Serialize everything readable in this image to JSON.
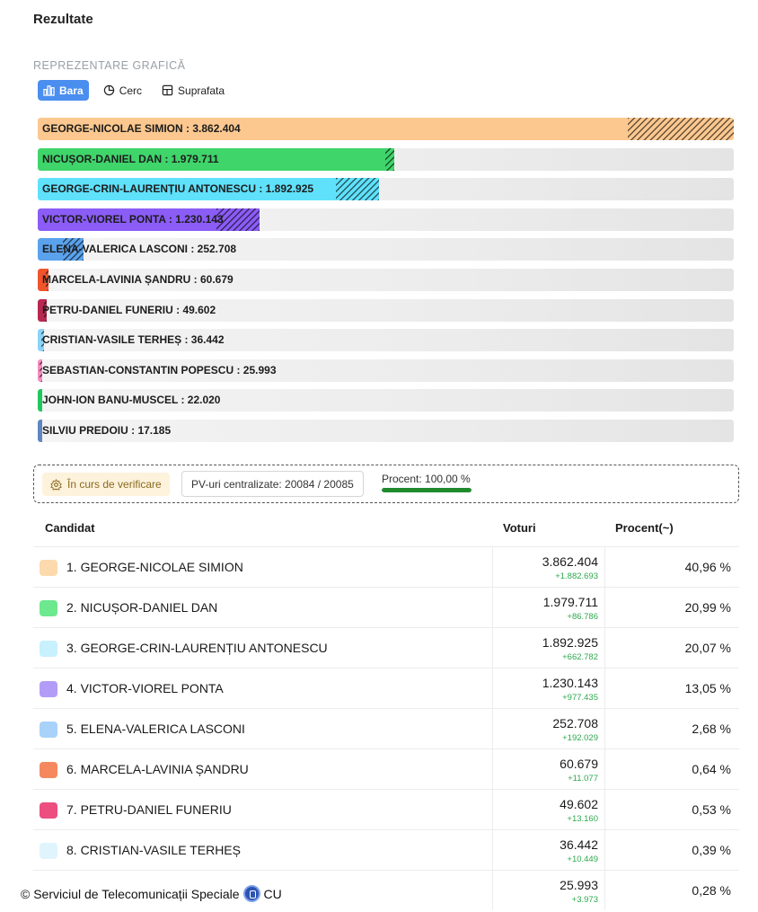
{
  "page": {
    "title": "Rezultate",
    "section_label": "REPREZENTARE GRAFICĂ"
  },
  "tabs": [
    {
      "label": "Bara",
      "icon": "bar-chart-icon",
      "active": true
    },
    {
      "label": "Cerc",
      "icon": "pie-chart-icon",
      "active": false
    },
    {
      "label": "Suprafata",
      "icon": "treemap-icon",
      "active": false
    }
  ],
  "chart_data": {
    "type": "bar",
    "orientation": "horizontal",
    "categories": [
      "GEORGE-NICOLAE SIMION",
      "NICUȘOR-DANIEL DAN",
      "GEORGE-CRIN-LAURENȚIU ANTONESCU",
      "VICTOR-VIOREL PONTA",
      "ELENA-VALERICA LASCONI",
      "MARCELA-LAVINIA ȘANDRU",
      "PETRU-DANIEL FUNERIU",
      "CRISTIAN-VASILE TERHEȘ",
      "SEBASTIAN-CONSTANTIN POPESCU",
      "JOHN-ION BANU-MUSCEL",
      "SILVIU PREDOIU"
    ],
    "values": [
      3862404,
      1979711,
      1892925,
      1230143,
      252708,
      60679,
      49602,
      36442,
      25993,
      22020,
      17185
    ],
    "value_labels": [
      "3.862.404",
      "1.979.711",
      "1.892.925",
      "1.230.143",
      "252.708",
      "60.679",
      "49.602",
      "36.442",
      "25.993",
      "22.020",
      "17.185"
    ],
    "increments": [
      1882693,
      86786,
      662782,
      977435,
      192029,
      11077,
      13160,
      10449,
      3973,
      null,
      null
    ],
    "colors": [
      "#fcc88f",
      "#3fd56b",
      "#5fe0fb",
      "#8b5cf6",
      "#5aa2ec",
      "#f0542c",
      "#b8274f",
      "#8bd3f7",
      "#f58bc0",
      "#22c85e",
      "#5f86c0"
    ],
    "xlim": [
      0,
      3862404
    ]
  },
  "status": {
    "verify_label": "În curs de verificare",
    "pv_label": "PV-uri centralizate: 20084 / 20085",
    "percent_label": "Procent: 100,00 %",
    "percent_value": 1.0
  },
  "table": {
    "headers": {
      "candidate": "Candidat",
      "votes": "Voturi",
      "percent": "Procent(~)"
    },
    "rows": [
      {
        "name": "1. GEORGE-NICOLAE SIMION",
        "votes": "3.862.404",
        "delta": "+1.882.693",
        "percent": "40,96 %",
        "color": "#fdd9ae"
      },
      {
        "name": "2. NICUȘOR-DANIEL DAN",
        "votes": "1.979.711",
        "delta": "+86.786",
        "percent": "20,99 %",
        "color": "#6ee88e"
      },
      {
        "name": "3. GEORGE-CRIN-LAURENȚIU ANTONESCU",
        "votes": "1.892.925",
        "delta": "+662.782",
        "percent": "20,07 %",
        "color": "#c7f2fd"
      },
      {
        "name": "4. VICTOR-VIOREL PONTA",
        "votes": "1.230.143",
        "delta": "+977.435",
        "percent": "13,05 %",
        "color": "#b39cf7"
      },
      {
        "name": "5. ELENA-VALERICA LASCONI",
        "votes": "252.708",
        "delta": "+192.029",
        "percent": "2,68 %",
        "color": "#a9d2fb"
      },
      {
        "name": "6. MARCELA-LAVINIA ȘANDRU",
        "votes": "60.679",
        "delta": "+11.077",
        "percent": "0,64 %",
        "color": "#f5885e"
      },
      {
        "name": "7. PETRU-DANIEL FUNERIU",
        "votes": "49.602",
        "delta": "+13.160",
        "percent": "0,53 %",
        "color": "#ec4f7f"
      },
      {
        "name": "8. CRISTIAN-VASILE TERHEȘ",
        "votes": "36.442",
        "delta": "+10.449",
        "percent": "0,39 %",
        "color": "#dff4fd"
      },
      {
        "name": "",
        "votes": "25.993",
        "delta": "+3.973",
        "percent": "0,28 %",
        "color": "transparent"
      }
    ]
  },
  "footer": {
    "text": "© Serviciul de Telecomunicații Speciale",
    "suffix": "CU"
  }
}
